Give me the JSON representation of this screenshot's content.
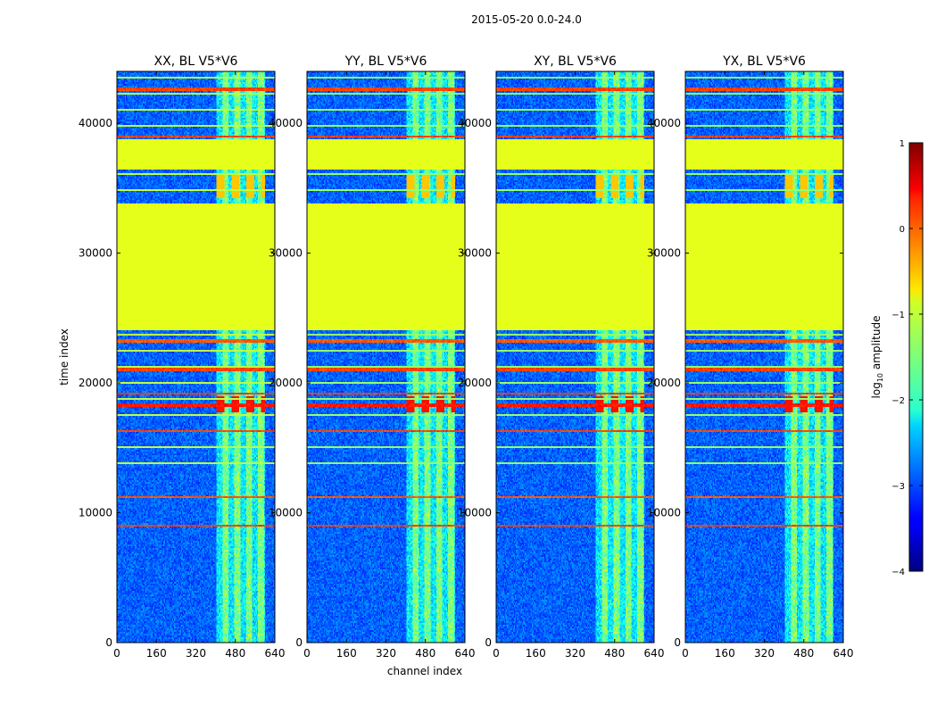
{
  "chart_data": {
    "type": "heatmap",
    "suptitle": "2015-05-20 0.0-24.0",
    "xlabel": "channel index",
    "ylabel": "time index",
    "xlim": [
      0,
      640
    ],
    "ylim": [
      0,
      44000
    ],
    "xticks": [
      "0",
      "160",
      "320",
      "480",
      "640"
    ],
    "xtick_values": [
      0,
      160,
      320,
      480,
      640
    ],
    "yticks": [
      "0",
      "10000",
      "20000",
      "30000",
      "40000"
    ],
    "ytick_values": [
      0,
      10000,
      20000,
      30000,
      40000
    ],
    "panels": [
      {
        "title": "XX, BL V5*V6",
        "polarization": "XX"
      },
      {
        "title": "YY, BL V5*V6",
        "polarization": "YY"
      },
      {
        "title": "XY, BL V5*V6",
        "polarization": "XY"
      },
      {
        "title": "YX, BL V5*V6",
        "polarization": "YX"
      }
    ],
    "flagged_time_ranges": [
      [
        24100,
        33800
      ],
      [
        36500,
        38800
      ]
    ],
    "flagged_log10_amplitude": -1.0,
    "background_log10_amplitude": -2.9,
    "rfi_channel_range": [
      405,
      600
    ],
    "rfi_log10_amplitude": -1.9,
    "hot_time_bands": [
      {
        "time": 9000,
        "log10_amplitude": 0.2
      },
      {
        "time": 11200,
        "log10_amplitude": 0.1
      },
      {
        "time": 16300,
        "log10_amplitude": 0.2
      },
      {
        "time": 18300,
        "log10_amplitude": 0.4
      },
      {
        "time": 19200,
        "log10_amplitude": 0.2
      },
      {
        "time": 21000,
        "log10_amplitude": 0.2
      },
      {
        "time": 23200,
        "log10_amplitude": 0.1
      },
      {
        "time": 39000,
        "log10_amplitude": 0.2
      },
      {
        "time": 42600,
        "log10_amplitude": 0.2
      }
    ],
    "colorbar": {
      "label": "log10 amplitude",
      "label_main": "log",
      "label_sub": "10",
      "label_rest": " amplitude",
      "min": -4,
      "max": 1,
      "colormap": "jet",
      "ticks": [
        "1",
        "0",
        "−1",
        "−2",
        "−3",
        "−4"
      ],
      "tick_values": [
        1,
        0,
        -1,
        -2,
        -3,
        -4
      ]
    }
  }
}
